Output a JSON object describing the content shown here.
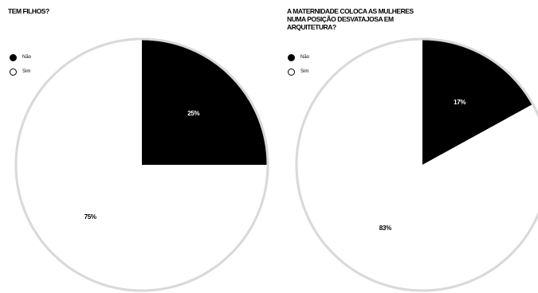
{
  "chart_data": [
    {
      "type": "pie",
      "title": "TEM FILHOS?",
      "categories": [
        "Não",
        "Sim"
      ],
      "values": [
        25,
        75
      ],
      "labels": [
        "25%",
        "75%"
      ],
      "colors": [
        "#000000",
        "#ffffff"
      ],
      "label_colors": [
        "#ffffff",
        "#000000"
      ],
      "legend": "top-left"
    },
    {
      "type": "pie",
      "title": "A MATERNIDADE COLOCA AS MULHERES\nNUMA POSIÇÃO DESVATAJOSA EM\nARQUITETURA?",
      "categories": [
        "Não",
        "Sim"
      ],
      "values": [
        17,
        83
      ],
      "labels": [
        "17%",
        "83%"
      ],
      "colors": [
        "#000000",
        "#ffffff"
      ],
      "label_colors": [
        "#ffffff",
        "#000000"
      ],
      "legend": "top-left"
    }
  ],
  "style": {
    "outline_color": "#d9d9d9"
  }
}
